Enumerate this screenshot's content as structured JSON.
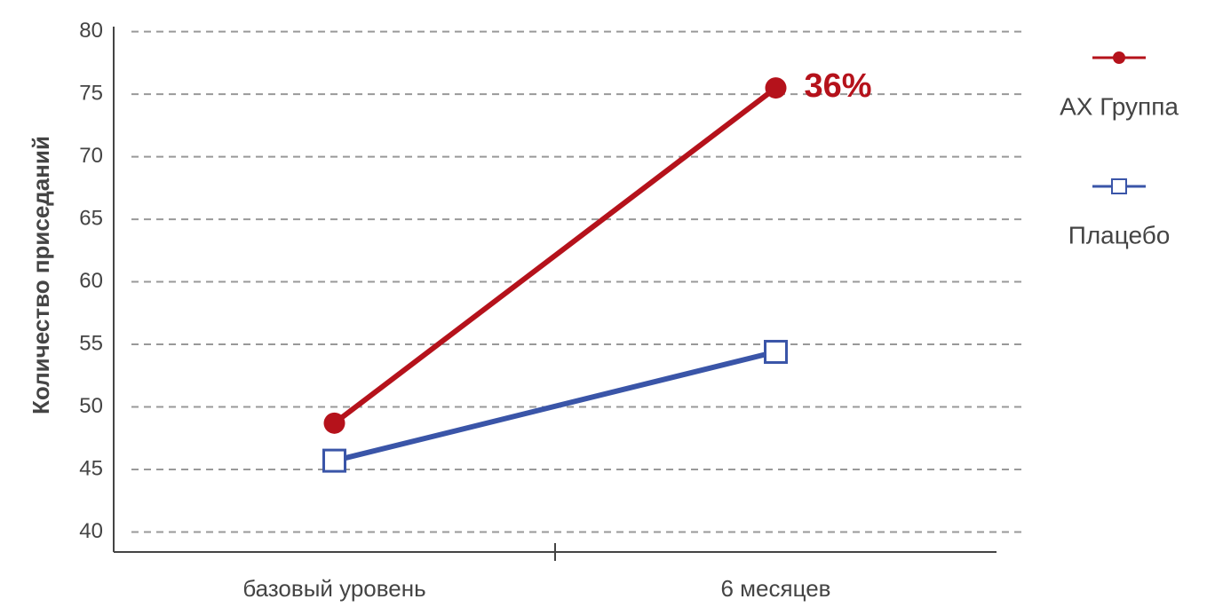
{
  "chart_data": {
    "type": "line",
    "y_label": "Количество приседаний",
    "categories": [
      "базовый уровень",
      "6 месяцев"
    ],
    "series": [
      {
        "name": "AX Группа",
        "color": "#b5121b",
        "marker": "circle",
        "values": [
          48.7,
          75.5
        ]
      },
      {
        "name": "Плацебо",
        "color": "#3a55a8",
        "marker": "square",
        "values": [
          45.7,
          54.4
        ]
      }
    ],
    "annotation": "36%",
    "ylim": [
      38.4,
      80.4
    ],
    "yticks": [
      40,
      45,
      50,
      55,
      60,
      65,
      70,
      75,
      80
    ],
    "grid": true,
    "legend": "right"
  }
}
